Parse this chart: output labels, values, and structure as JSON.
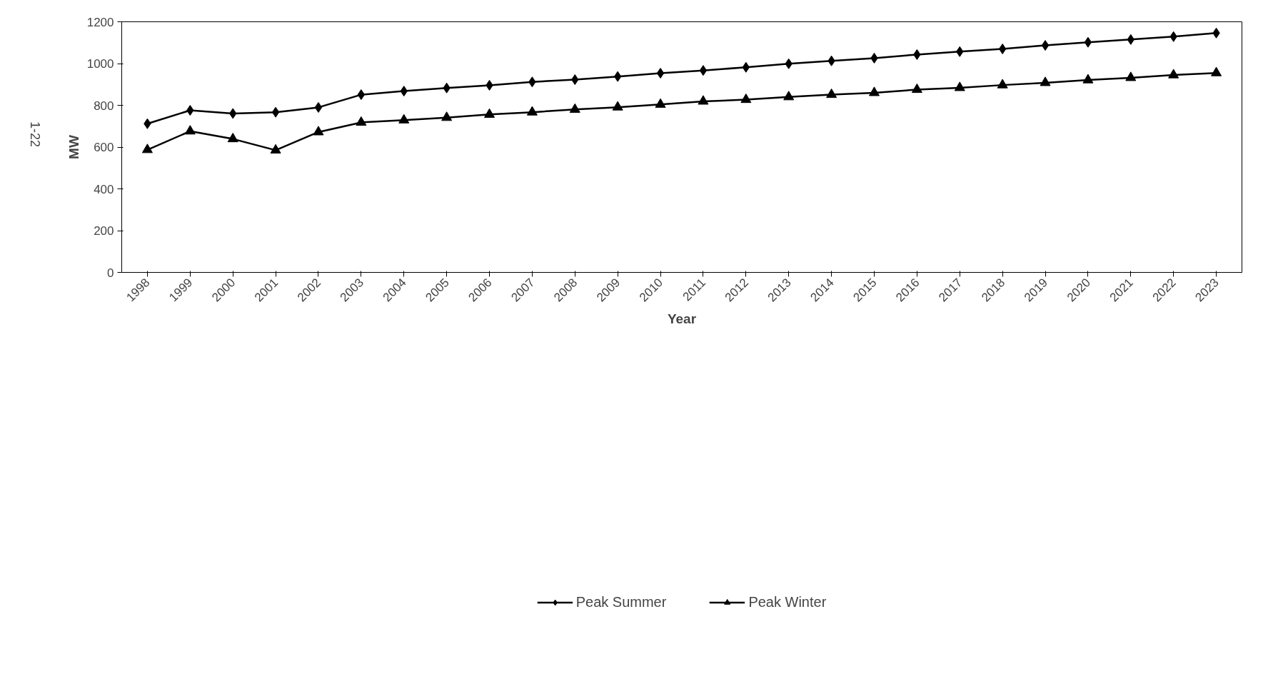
{
  "chart_data": {
    "type": "line",
    "xlabel": "Year",
    "ylabel": "MW",
    "categories": [
      "1998",
      "1999",
      "2000",
      "2001",
      "2002",
      "2003",
      "2004",
      "2005",
      "2006",
      "2007",
      "2008",
      "2009",
      "2010",
      "2011",
      "2012",
      "2013",
      "2014",
      "2015",
      "2016",
      "2017",
      "2018",
      "2019",
      "2020",
      "2021",
      "2022",
      "2023"
    ],
    "series": [
      {
        "name": "Peak Summer",
        "color": "#000000",
        "marker": "diamond",
        "values": [
          712,
          776,
          761,
          767,
          790,
          851,
          868,
          883,
          896,
          912,
          923,
          938,
          954,
          967,
          982,
          999,
          1013,
          1026,
          1043,
          1057,
          1070,
          1087,
          1102,
          1115,
          1129,
          1146
        ]
      },
      {
        "name": "Peak Winter",
        "color": "#000000",
        "marker": "triangle",
        "values": [
          587,
          676,
          639,
          585,
          672,
          718,
          729,
          741,
          756,
          767,
          780,
          791,
          804,
          819,
          827,
          840,
          851,
          860,
          875,
          884,
          897,
          908,
          921,
          932,
          945,
          955
        ]
      }
    ],
    "ylim": [
      0,
      1200
    ],
    "yticks": [
      0,
      200,
      400,
      600,
      800,
      1000,
      1200
    ],
    "grid": false,
    "legend": "bottom",
    "line_style": "solid",
    "annotations": [
      "1-22"
    ]
  }
}
